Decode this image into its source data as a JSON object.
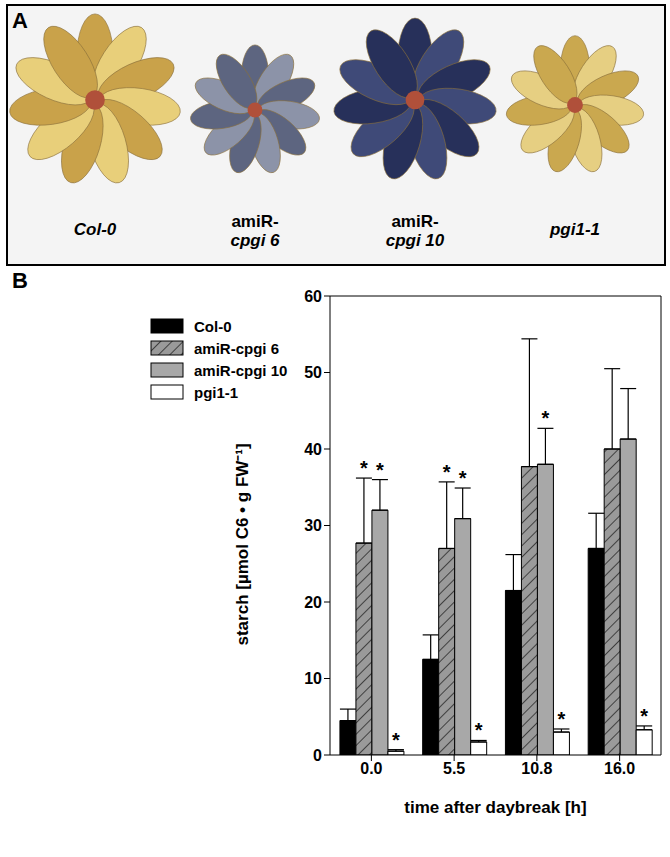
{
  "panel_labels": [
    "A",
    "B"
  ],
  "photo_labels": [
    "Col-0",
    "amiR-cpgi 6",
    "amiR-cpgi 10",
    "pgi1-1"
  ],
  "chart_data": {
    "type": "bar",
    "categories": [
      "0.0",
      "5.5",
      "10.8",
      "16.0"
    ],
    "x_label": "time after daybreak [h]",
    "y_label": "starch [µmol C6 • g FW⁻¹]",
    "ylim": [
      0,
      60
    ],
    "yticks": [
      0,
      10,
      20,
      30,
      40,
      50,
      60
    ],
    "grid": false,
    "legend": "upper left",
    "series": [
      {
        "name": "Col-0",
        "color": "#000000",
        "values": [
          4.5,
          12.5,
          21.5,
          27.0
        ],
        "errors": [
          1.5,
          3.2,
          4.7,
          4.6
        ],
        "annotations": [
          null,
          null,
          null,
          null
        ]
      },
      {
        "name": "amiR-cpgi 6",
        "color": "#9a9a9a",
        "values": [
          27.7,
          27.0,
          37.7,
          40.0
        ],
        "errors": [
          8.5,
          8.7,
          16.7,
          10.5
        ],
        "annotations": [
          "*",
          "*",
          null,
          null
        ]
      },
      {
        "name": "amiR-cpgi 10",
        "color": "#a8a8a8",
        "values": [
          32.0,
          30.9,
          38.0,
          41.3
        ],
        "errors": [
          4.0,
          4.0,
          4.7,
          6.6
        ],
        "annotations": [
          "*",
          "*",
          "*",
          null
        ]
      },
      {
        "name": "pgi1-1",
        "color": "#ffffff",
        "values": [
          0.5,
          1.7,
          3.0,
          3.3
        ],
        "errors": [
          0.2,
          0.2,
          0.4,
          0.5
        ],
        "annotations": [
          "*",
          "*",
          "*",
          "*"
        ]
      }
    ]
  }
}
